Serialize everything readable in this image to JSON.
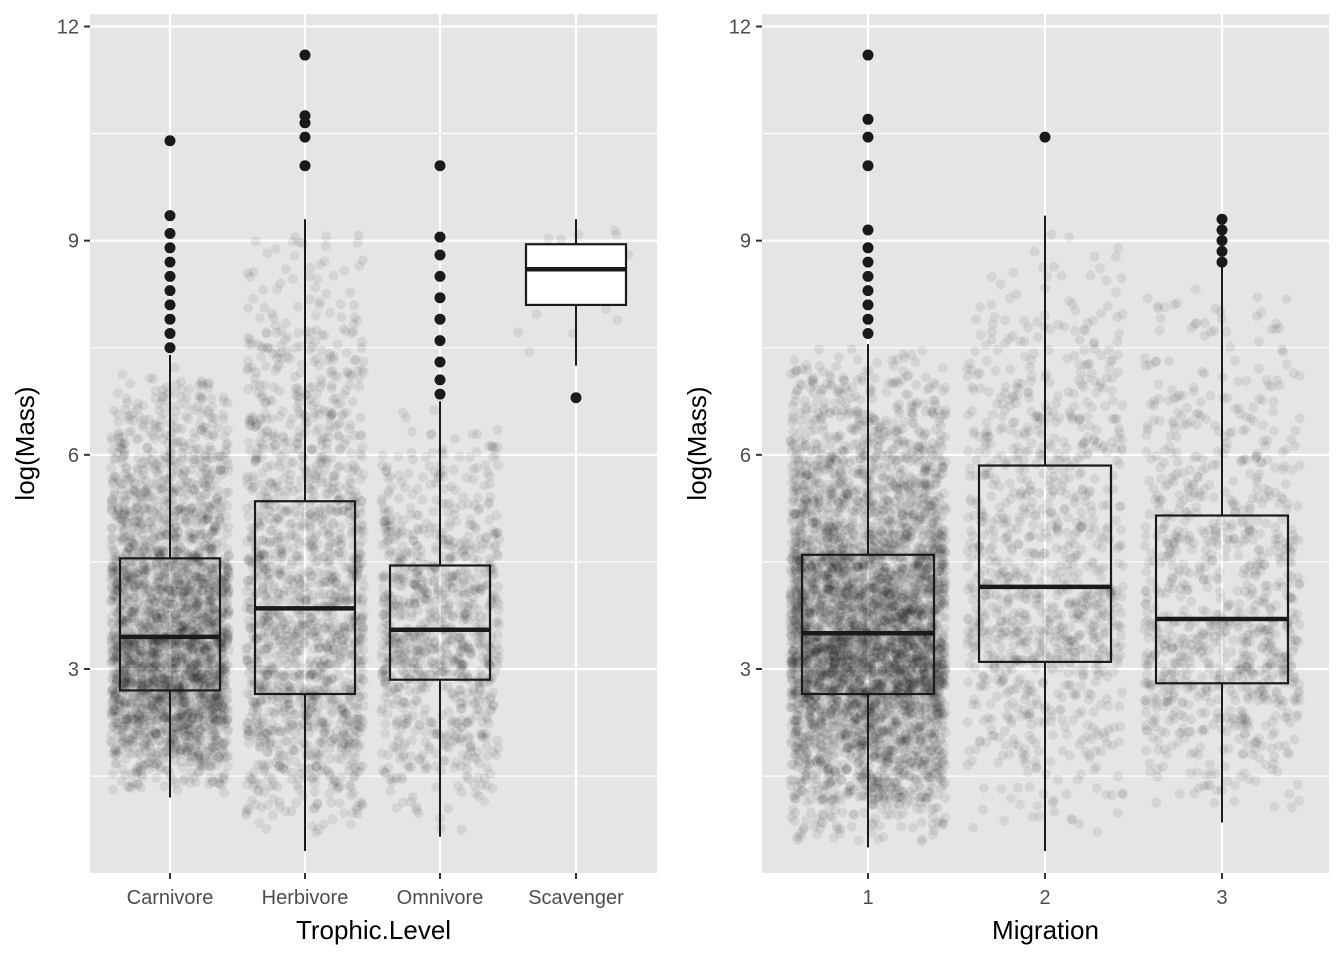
{
  "theme": {
    "panel_background": "#e5e5e5",
    "grid_color": "#ffffff",
    "box_color": "#1a1a1a",
    "point_color": "#000000",
    "tick_text_color": "#4d4d4d"
  },
  "chart_data": [
    {
      "type": "boxplot",
      "xlabel": "Trophic.Level",
      "ylabel": "log(Mass)",
      "ylim": [
        0,
        12.2
      ],
      "yticks": [
        "3",
        "6",
        "9",
        "12"
      ],
      "grid": true,
      "jitter_overlay": true,
      "categories": [
        "Carnivore",
        "Herbivore",
        "Omnivore",
        "Scavenger"
      ],
      "boxes": [
        {
          "category": "Carnivore",
          "whisker_low": 1.2,
          "q1": 2.7,
          "median": 3.45,
          "q3": 4.55,
          "whisker_high": 7.4,
          "outliers": [
            7.5,
            7.7,
            7.9,
            8.1,
            8.3,
            8.5,
            8.7,
            8.9,
            9.1,
            9.35,
            10.4
          ],
          "n_jitter": 2600
        },
        {
          "category": "Herbivore",
          "whisker_low": 0.45,
          "q1": 2.65,
          "median": 3.85,
          "q3": 5.35,
          "whisker_high": 9.3,
          "outliers": [
            10.05,
            10.45,
            10.65,
            10.75,
            11.6
          ],
          "n_jitter": 1500
        },
        {
          "category": "Omnivore",
          "whisker_low": 0.65,
          "q1": 2.85,
          "median": 3.55,
          "q3": 4.45,
          "whisker_high": 6.75,
          "outliers": [
            6.85,
            7.05,
            7.3,
            7.6,
            7.9,
            8.2,
            8.5,
            8.8,
            9.05,
            10.05
          ],
          "n_jitter": 900
        },
        {
          "category": "Scavenger",
          "whisker_low": 7.25,
          "q1": 8.1,
          "median": 8.6,
          "q3": 8.95,
          "whisker_high": 9.3,
          "outliers": [
            6.8
          ],
          "n_jitter": 18
        }
      ]
    },
    {
      "type": "boxplot",
      "xlabel": "Migration",
      "ylabel": "log(Mass)",
      "ylim": [
        0,
        12.2
      ],
      "yticks": [
        "3",
        "6",
        "9",
        "12"
      ],
      "grid": true,
      "jitter_overlay": true,
      "categories": [
        "1",
        "2",
        "3"
      ],
      "boxes": [
        {
          "category": "1",
          "whisker_low": 0.5,
          "q1": 2.65,
          "median": 3.5,
          "q3": 4.6,
          "whisker_high": 7.55,
          "outliers": [
            7.7,
            7.9,
            8.1,
            8.3,
            8.5,
            8.7,
            8.9,
            9.15,
            10.05,
            10.45,
            10.7,
            11.6
          ],
          "n_jitter": 4200
        },
        {
          "category": "2",
          "whisker_low": 0.45,
          "q1": 3.1,
          "median": 4.15,
          "q3": 5.85,
          "whisker_high": 9.35,
          "outliers": [
            10.45
          ],
          "n_jitter": 1000
        },
        {
          "category": "3",
          "whisker_low": 0.85,
          "q1": 2.8,
          "median": 3.7,
          "q3": 5.15,
          "whisker_high": 8.65,
          "outliers": [
            8.7,
            8.85,
            9.0,
            9.15,
            9.3
          ],
          "n_jitter": 900
        }
      ]
    }
  ]
}
